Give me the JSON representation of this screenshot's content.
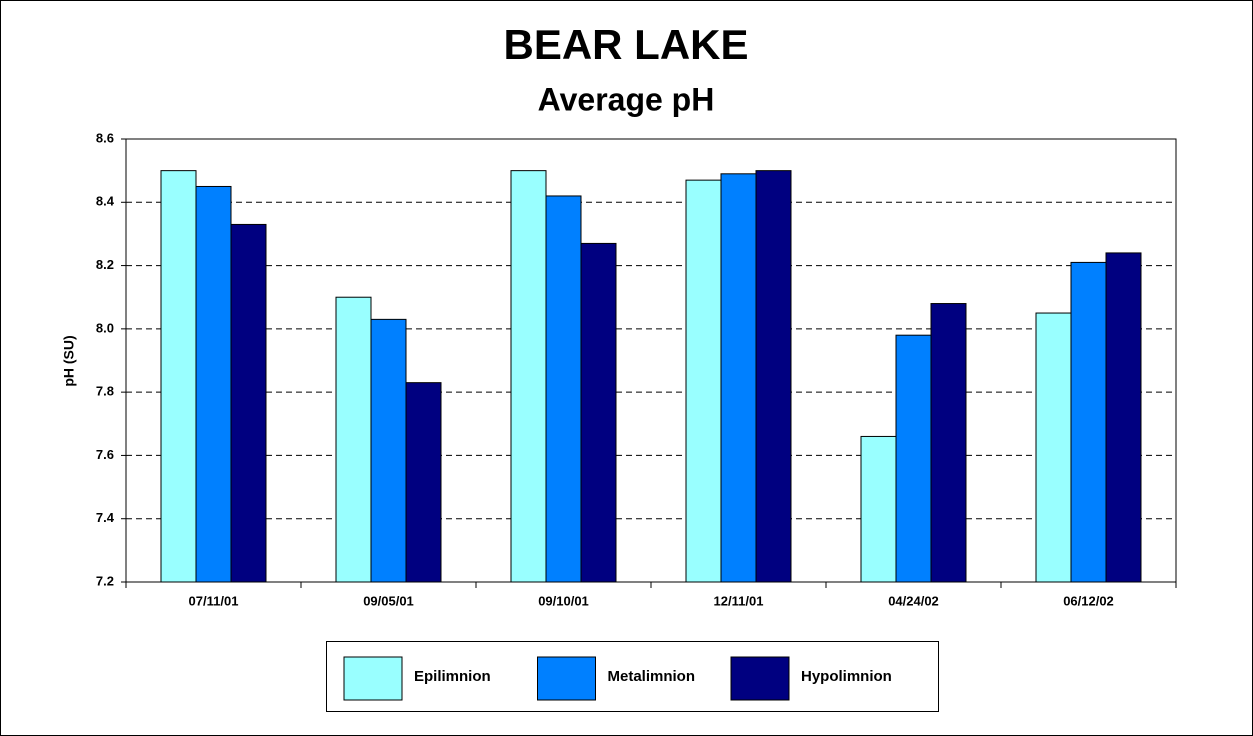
{
  "chart_data": {
    "type": "bar",
    "title": "BEAR LAKE",
    "subtitle": "Average pH",
    "y_label": "pH (SU)",
    "categories": [
      "07/11/01",
      "09/05/01",
      "09/10/01",
      "12/11/01",
      "04/24/02",
      "06/12/02"
    ],
    "series": [
      {
        "name": "Epilimnion",
        "color": "#99ffff",
        "values": [
          8.5,
          8.1,
          8.5,
          8.47,
          7.66,
          8.05
        ]
      },
      {
        "name": "Metalimnion",
        "color": "#0080ff",
        "values": [
          8.45,
          8.03,
          8.42,
          8.49,
          7.98,
          8.21
        ]
      },
      {
        "name": "Hypolimnion",
        "color": "#000080",
        "values": [
          8.33,
          7.83,
          8.27,
          8.5,
          8.08,
          8.24
        ]
      }
    ],
    "ylim": [
      7.2,
      8.6
    ],
    "yticks": [
      {
        "value": 7.2,
        "label": "7.2"
      },
      {
        "value": 7.4,
        "label": "7.4"
      },
      {
        "value": 7.6,
        "label": "7.6"
      },
      {
        "value": 7.8,
        "label": "7.8"
      },
      {
        "value": 8.0,
        "label": "8.0"
      },
      {
        "value": 8.2,
        "label": "8.2"
      },
      {
        "value": 8.4,
        "label": "8.4"
      },
      {
        "value": 8.6,
        "label": "8.6"
      }
    ],
    "grid": true
  }
}
